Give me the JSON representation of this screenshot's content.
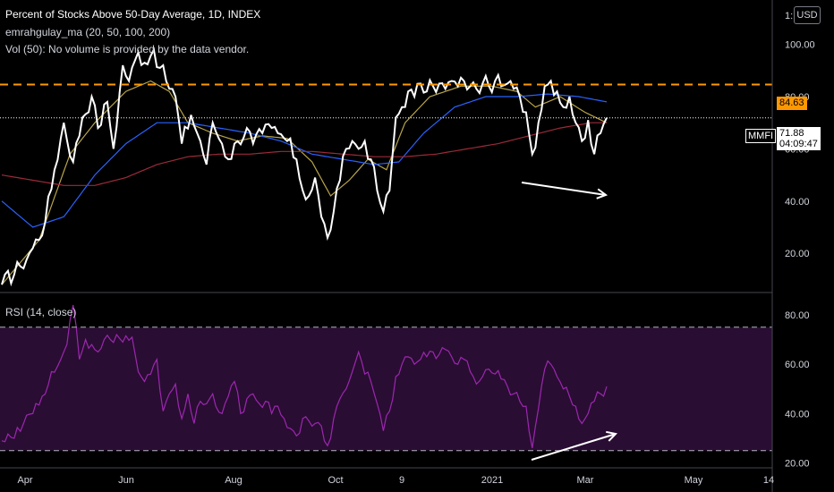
{
  "header": {
    "title": "Percent of Stocks Above 50-Day Average, 1D, INDEX",
    "study_ma": "emrahgulay_ma (20, 50, 100, 200)",
    "study_vol": "Vol (50): No volume is provided by the data vendor.",
    "rsi_label": "RSI (14, close)",
    "currency": "USD"
  },
  "price_tags": {
    "line_level": "84.63",
    "last_price": "71.88",
    "countdown": "04:09:47",
    "symbol": "MMFI"
  },
  "colors": {
    "price": "#ffffff",
    "ma20": "#b8a44a",
    "ma50": "#2962ff",
    "ma200": "#9c2a3a",
    "level": "#ff9800",
    "rsi": "#9c27b0",
    "rsi_band": "#2a0d33"
  },
  "chart_data": [
    {
      "type": "line",
      "title": "Percent of Stocks Above 50-Day Average, 1D, INDEX",
      "ylim": [
        5,
        117
      ],
      "y_ticks": [
        "20.00",
        "40.00",
        "60.00",
        "80.00",
        "100.00"
      ],
      "x_ticks": [
        "Apr",
        "Jun",
        "Aug",
        "Oct",
        "9",
        "2021",
        "Mar",
        "May",
        "14"
      ],
      "grid": false,
      "horizontal_line": 84.63,
      "last_value": 71.88,
      "price_keypoints": [
        [
          0,
          8
        ],
        [
          6,
          15
        ],
        [
          10,
          22
        ],
        [
          14,
          32
        ],
        [
          17,
          52
        ],
        [
          20,
          70
        ],
        [
          23,
          55
        ],
        [
          26,
          72
        ],
        [
          29,
          80
        ],
        [
          31,
          68
        ],
        [
          34,
          78
        ],
        [
          36,
          60
        ],
        [
          39,
          92
        ],
        [
          41,
          86
        ],
        [
          44,
          97
        ],
        [
          46,
          93
        ],
        [
          49,
          98
        ],
        [
          51,
          91
        ],
        [
          53,
          86
        ],
        [
          56,
          80
        ],
        [
          58,
          62
        ],
        [
          61,
          73
        ],
        [
          64,
          63
        ],
        [
          66,
          54
        ],
        [
          68,
          70
        ],
        [
          71,
          62
        ],
        [
          73,
          56
        ],
        [
          76,
          63
        ],
        [
          79,
          68
        ],
        [
          81,
          62
        ],
        [
          84,
          66
        ],
        [
          87,
          68
        ],
        [
          89,
          66
        ],
        [
          92,
          63
        ],
        [
          95,
          56
        ],
        [
          97,
          44
        ],
        [
          99,
          42
        ],
        [
          101,
          49
        ],
        [
          103,
          34
        ],
        [
          105,
          26
        ],
        [
          107,
          36
        ],
        [
          109,
          48
        ],
        [
          111,
          60
        ],
        [
          113,
          63
        ],
        [
          115,
          60
        ],
        [
          117,
          63
        ],
        [
          119,
          56
        ],
        [
          121,
          44
        ],
        [
          123,
          36
        ],
        [
          125,
          44
        ],
        [
          127,
          72
        ],
        [
          129,
          76
        ],
        [
          131,
          82
        ],
        [
          133,
          80
        ],
        [
          135,
          85
        ],
        [
          137,
          82
        ],
        [
          139,
          84
        ],
        [
          141,
          85
        ],
        [
          143,
          83
        ],
        [
          145,
          86
        ],
        [
          147,
          84
        ],
        [
          149,
          86
        ],
        [
          151,
          84
        ],
        [
          153,
          83
        ],
        [
          155,
          85
        ],
        [
          157,
          84
        ],
        [
          159,
          86
        ],
        [
          161,
          84
        ],
        [
          163,
          85
        ],
        [
          165,
          83
        ],
        [
          167,
          80
        ],
        [
          169,
          74
        ],
        [
          171,
          58
        ],
        [
          173,
          70
        ],
        [
          175,
          84
        ],
        [
          177,
          86
        ],
        [
          179,
          82
        ],
        [
          181,
          76
        ],
        [
          183,
          80
        ],
        [
          185,
          70
        ],
        [
          187,
          63
        ],
        [
          189,
          71
        ],
        [
          191,
          58
        ],
        [
          193,
          66
        ],
        [
          195,
          71.88
        ]
      ],
      "series": [
        {
          "name": "",
          "role": "price",
          "values": []
        },
        {
          "name": "",
          "role": "ma20",
          "keypoints": [
            [
              0,
              8
            ],
            [
              12,
              25
            ],
            [
              22,
              58
            ],
            [
              30,
              70
            ],
            [
              40,
              82
            ],
            [
              48,
              86
            ],
            [
              54,
              82
            ],
            [
              60,
              70
            ],
            [
              68,
              66
            ],
            [
              76,
              63
            ],
            [
              84,
              65
            ],
            [
              92,
              64
            ],
            [
              100,
              55
            ],
            [
              106,
              42
            ],
            [
              112,
              48
            ],
            [
              118,
              56
            ],
            [
              124,
              52
            ],
            [
              130,
              70
            ],
            [
              138,
              80
            ],
            [
              148,
              84
            ],
            [
              158,
              84
            ],
            [
              166,
              82
            ],
            [
              172,
              76
            ],
            [
              180,
              80
            ],
            [
              188,
              74
            ],
            [
              195,
              70
            ]
          ]
        },
        {
          "name": "",
          "role": "ma50",
          "keypoints": [
            [
              0,
              40
            ],
            [
              10,
              30
            ],
            [
              20,
              34
            ],
            [
              30,
              50
            ],
            [
              40,
              62
            ],
            [
              50,
              70
            ],
            [
              60,
              70
            ],
            [
              70,
              68
            ],
            [
              80,
              66
            ],
            [
              90,
              63
            ],
            [
              100,
              58
            ],
            [
              110,
              56
            ],
            [
              120,
              54
            ],
            [
              128,
              55
            ],
            [
              136,
              66
            ],
            [
              146,
              76
            ],
            [
              156,
              80
            ],
            [
              166,
              80
            ],
            [
              176,
              81
            ],
            [
              186,
              80
            ],
            [
              195,
              78
            ]
          ]
        },
        {
          "name": "",
          "role": "ma200",
          "keypoints": [
            [
              0,
              50
            ],
            [
              10,
              48
            ],
            [
              20,
              46
            ],
            [
              30,
              46
            ],
            [
              40,
              49
            ],
            [
              50,
              54
            ],
            [
              60,
              57
            ],
            [
              70,
              58
            ],
            [
              80,
              58
            ],
            [
              90,
              59
            ],
            [
              100,
              59
            ],
            [
              110,
              58
            ],
            [
              120,
              57
            ],
            [
              130,
              57
            ],
            [
              140,
              58
            ],
            [
              150,
              60
            ],
            [
              160,
              62
            ],
            [
              170,
              65
            ],
            [
              180,
              68
            ],
            [
              190,
              70
            ],
            [
              195,
              70
            ]
          ]
        }
      ]
    },
    {
      "type": "line",
      "title": "RSI (14, close)",
      "ylim": [
        18,
        88
      ],
      "y_ticks": [
        "20.00",
        "40.00",
        "60.00",
        "80.00"
      ],
      "band": [
        25,
        75
      ],
      "rsi_keypoints": [
        [
          0,
          29
        ],
        [
          4,
          30
        ],
        [
          7,
          36
        ],
        [
          10,
          40
        ],
        [
          13,
          47
        ],
        [
          16,
          57
        ],
        [
          19,
          62
        ],
        [
          21,
          68
        ],
        [
          23,
          84
        ],
        [
          25,
          62
        ],
        [
          27,
          70
        ],
        [
          29,
          68
        ],
        [
          31,
          65
        ],
        [
          33,
          70
        ],
        [
          35,
          70
        ],
        [
          37,
          72
        ],
        [
          39,
          69
        ],
        [
          42,
          71
        ],
        [
          44,
          57
        ],
        [
          46,
          53
        ],
        [
          48,
          56
        ],
        [
          50,
          62
        ],
        [
          52,
          41
        ],
        [
          54,
          48
        ],
        [
          56,
          52
        ],
        [
          58,
          38
        ],
        [
          60,
          48
        ],
        [
          62,
          36
        ],
        [
          64,
          45
        ],
        [
          66,
          44
        ],
        [
          68,
          48
        ],
        [
          71,
          40
        ],
        [
          73,
          47
        ],
        [
          75,
          53
        ],
        [
          77,
          40
        ],
        [
          79,
          46
        ],
        [
          81,
          48
        ],
        [
          83,
          44
        ],
        [
          85,
          45
        ],
        [
          87,
          40
        ],
        [
          89,
          43
        ],
        [
          91,
          38
        ],
        [
          93,
          34
        ],
        [
          95,
          31
        ],
        [
          97,
          38
        ],
        [
          99,
          37
        ],
        [
          101,
          36
        ],
        [
          103,
          35
        ],
        [
          105,
          27
        ],
        [
          107,
          38
        ],
        [
          109,
          46
        ],
        [
          111,
          50
        ],
        [
          113,
          57
        ],
        [
          115,
          65
        ],
        [
          117,
          56
        ],
        [
          119,
          53
        ],
        [
          121,
          44
        ],
        [
          123,
          33
        ],
        [
          125,
          41
        ],
        [
          127,
          55
        ],
        [
          129,
          60
        ],
        [
          131,
          63
        ],
        [
          133,
          60
        ],
        [
          135,
          62
        ],
        [
          137,
          63
        ],
        [
          139,
          65
        ],
        [
          141,
          64
        ],
        [
          143,
          66
        ],
        [
          145,
          63
        ],
        [
          147,
          60
        ],
        [
          149,
          62
        ],
        [
          151,
          57
        ],
        [
          153,
          52
        ],
        [
          155,
          55
        ],
        [
          157,
          58
        ],
        [
          159,
          56
        ],
        [
          161,
          54
        ],
        [
          163,
          51
        ],
        [
          165,
          48
        ],
        [
          167,
          45
        ],
        [
          169,
          43
        ],
        [
          171,
          26
        ],
        [
          173,
          42
        ],
        [
          175,
          58
        ],
        [
          177,
          60
        ],
        [
          179,
          55
        ],
        [
          181,
          50
        ],
        [
          183,
          47
        ],
        [
          185,
          43
        ],
        [
          187,
          36
        ],
        [
          189,
          40
        ],
        [
          191,
          45
        ],
        [
          193,
          48
        ],
        [
          195,
          51
        ]
      ]
    }
  ]
}
